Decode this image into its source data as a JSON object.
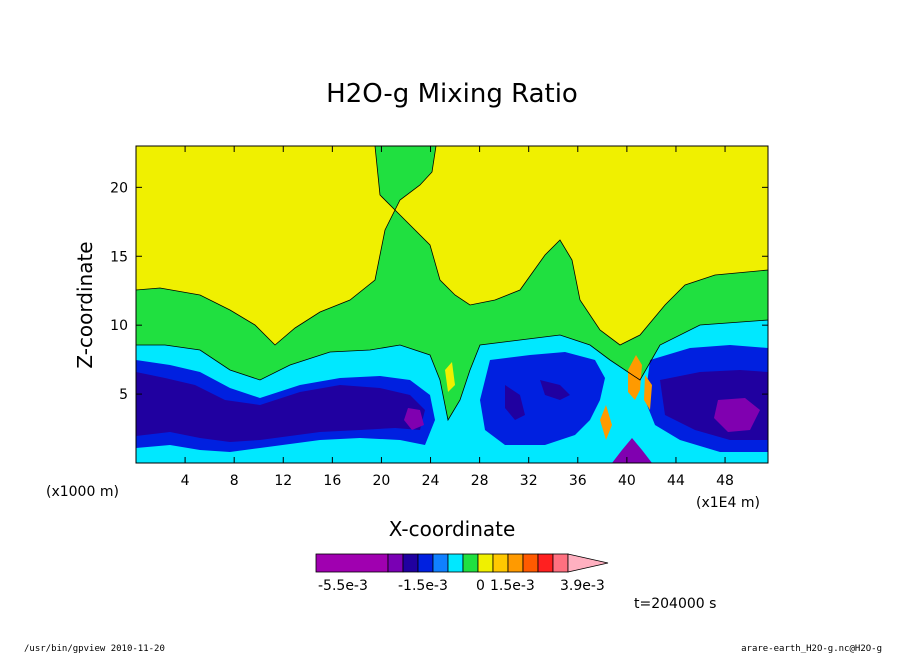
{
  "chart_data": {
    "type": "heatmap",
    "title": "H2O-g Mixing Ratio",
    "xlabel": "X-coordinate",
    "ylabel": "Z-coordinate",
    "x_unit_note": "(x1000 m)",
    "x_scale_note": "(x1E4 m)",
    "x_ticks": [
      4,
      8,
      12,
      16,
      20,
      24,
      28,
      32,
      36,
      40,
      44,
      48
    ],
    "y_ticks": [
      5,
      10,
      15,
      20
    ],
    "xlim": [
      0,
      51.5
    ],
    "ylim": [
      0,
      23
    ],
    "time_label": "t=204000 s",
    "colorbar": {
      "labels": [
        "-5.5e-3",
        "-1.5e-3",
        "0",
        "1.5e-3",
        "3.9e-3"
      ],
      "colors": [
        "#a000b0",
        "#7a00b4",
        "#2000a0",
        "#0020e0",
        "#1080ff",
        "#00e8ff",
        "#20e040",
        "#f0f000",
        "#ffc800",
        "#ff9a00",
        "#ff5a00",
        "#ff2020",
        "#ff7080",
        "#ffb0c0"
      ]
    },
    "regions": [
      {
        "name": "yellow",
        "color": "#f0f000"
      },
      {
        "name": "green",
        "color": "#20e040"
      },
      {
        "name": "cyan",
        "color": "#00e8ff"
      },
      {
        "name": "blue",
        "color": "#0020e0"
      },
      {
        "name": "dark-blue",
        "color": "#2000a0"
      },
      {
        "name": "purple",
        "color": "#8000b0"
      },
      {
        "name": "orange",
        "color": "#ff9a00"
      }
    ]
  },
  "footer": {
    "left": "/usr/bin/gpview  2010-11-20",
    "right": "arare-earth_H2O-g.nc@H2O-g"
  }
}
